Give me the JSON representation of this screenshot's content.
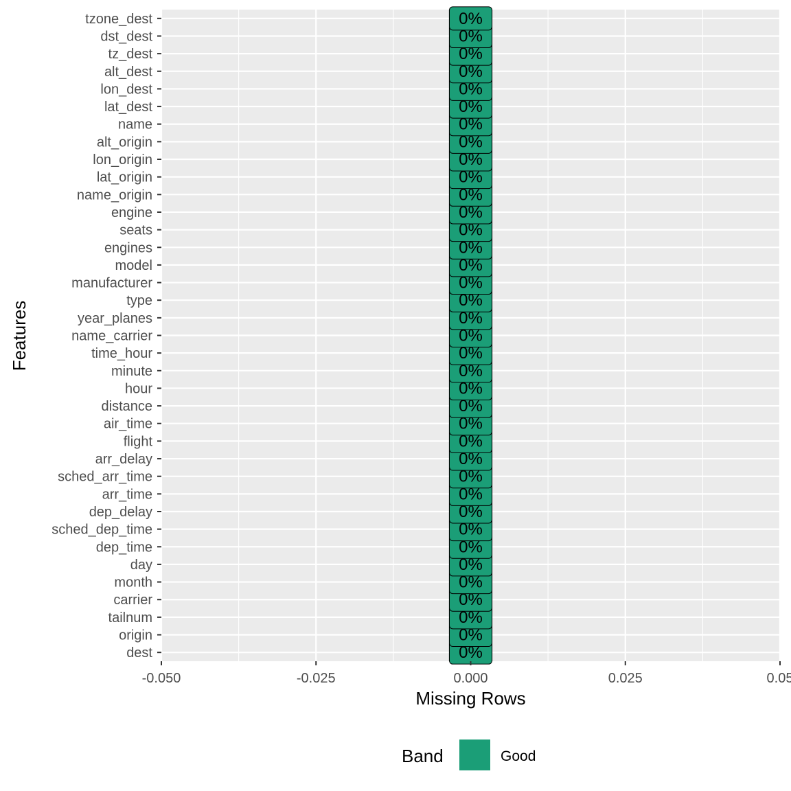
{
  "chart_data": {
    "type": "bar",
    "orientation": "horizontal",
    "title": "",
    "xlabel": "Missing Rows",
    "ylabel": "Features",
    "xlim": [
      -0.05,
      0.05
    ],
    "xticks": [
      -0.05,
      -0.025,
      0.0,
      0.025,
      0.05
    ],
    "xtick_labels": [
      "-0.050",
      "-0.025",
      "0.000",
      "0.025",
      "0.05"
    ],
    "grid": true,
    "categories": [
      "dest",
      "origin",
      "tailnum",
      "carrier",
      "month",
      "day",
      "dep_time",
      "sched_dep_time",
      "dep_delay",
      "arr_time",
      "sched_arr_time",
      "arr_delay",
      "flight",
      "air_time",
      "distance",
      "hour",
      "minute",
      "time_hour",
      "name_carrier",
      "year_planes",
      "type",
      "manufacturer",
      "model",
      "engines",
      "seats",
      "engine",
      "name_origin",
      "lat_origin",
      "lon_origin",
      "alt_origin",
      "name",
      "lat_dest",
      "lon_dest",
      "alt_dest",
      "tz_dest",
      "dst_dest",
      "tzone_dest"
    ],
    "values": [
      0,
      0,
      0,
      0,
      0,
      0,
      0,
      0,
      0,
      0,
      0,
      0,
      0,
      0,
      0,
      0,
      0,
      0,
      0,
      0,
      0,
      0,
      0,
      0,
      0,
      0,
      0,
      0,
      0,
      0,
      0,
      0,
      0,
      0,
      0,
      0,
      0
    ],
    "data_labels": [
      "0%",
      "0%",
      "0%",
      "0%",
      "0%",
      "0%",
      "0%",
      "0%",
      "0%",
      "0%",
      "0%",
      "0%",
      "0%",
      "0%",
      "0%",
      "0%",
      "0%",
      "0%",
      "0%",
      "0%",
      "0%",
      "0%",
      "0%",
      "0%",
      "0%",
      "0%",
      "0%",
      "0%",
      "0%",
      "0%",
      "0%",
      "0%",
      "0%",
      "0%",
      "0%",
      "0%",
      "0%"
    ],
    "bands": [
      "Good",
      "Good",
      "Good",
      "Good",
      "Good",
      "Good",
      "Good",
      "Good",
      "Good",
      "Good",
      "Good",
      "Good",
      "Good",
      "Good",
      "Good",
      "Good",
      "Good",
      "Good",
      "Good",
      "Good",
      "Good",
      "Good",
      "Good",
      "Good",
      "Good",
      "Good",
      "Good",
      "Good",
      "Good",
      "Good",
      "Good",
      "Good",
      "Good",
      "Good",
      "Good",
      "Good",
      "Good"
    ],
    "legend": {
      "title": "Band",
      "placement": "bottom",
      "entries": [
        {
          "label": "Good",
          "color": "#1b9e77"
        }
      ]
    },
    "colors": {
      "panel_background": "#ebebeb",
      "grid": "#ffffff",
      "bar_fill": "#1b9e77",
      "bar_outline": "#000000",
      "label_box_fill": "#1b9e77"
    }
  }
}
